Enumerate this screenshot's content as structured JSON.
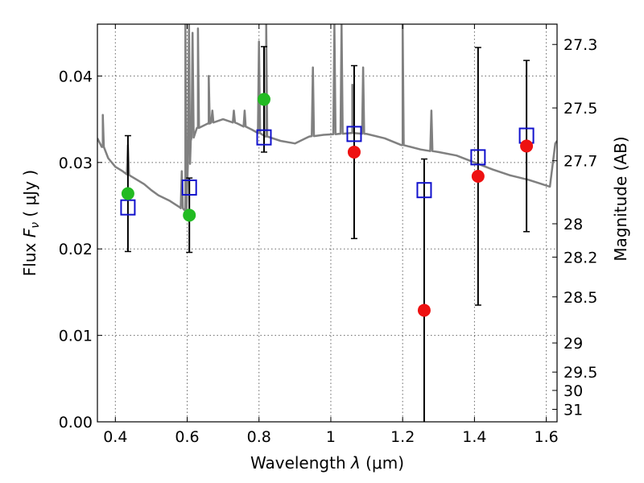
{
  "chart_data": {
    "type": "scatter",
    "title": "",
    "xlabel": "Wavelength  λ (μm)",
    "ylabel": "Flux  F_ν  ( μJy )",
    "ylabel_parts": {
      "pre": "Flux  ",
      "var": "F",
      "sub": "ν",
      "post": "  ( μJy )"
    },
    "xlabel_parts": {
      "pre": "Wavelength  ",
      "var": "λ",
      "post": " (μm)"
    },
    "right_ylabel": "Magnitude (AB)",
    "xlim": [
      0.35,
      1.63
    ],
    "ylim": [
      0.0,
      0.046
    ],
    "grid": true,
    "x_ticks": [
      {
        "v": 0.4,
        "label": "0.4"
      },
      {
        "v": 0.6,
        "label": "0.6"
      },
      {
        "v": 0.8,
        "label": "0.8"
      },
      {
        "v": 1.0,
        "label": "1"
      },
      {
        "v": 1.2,
        "label": "1.2"
      },
      {
        "v": 1.4,
        "label": "1.4"
      },
      {
        "v": 1.6,
        "label": "1.6"
      }
    ],
    "y_ticks": [
      {
        "v": 0.0,
        "label": "0.00"
      },
      {
        "v": 0.01,
        "label": "0.01"
      },
      {
        "v": 0.02,
        "label": "0.02"
      },
      {
        "v": 0.03,
        "label": "0.03"
      },
      {
        "v": 0.04,
        "label": "0.04"
      }
    ],
    "right_ticks": [
      {
        "mag": 27.3,
        "label": "27.3"
      },
      {
        "mag": 27.5,
        "label": "27.5"
      },
      {
        "mag": 27.7,
        "label": "27.7"
      },
      {
        "mag": 28.0,
        "label": "28"
      },
      {
        "mag": 28.2,
        "label": "28.2"
      },
      {
        "mag": 28.5,
        "label": "28.5"
      },
      {
        "mag": 29.0,
        "label": "29"
      },
      {
        "mag": 29.5,
        "label": "29.5"
      },
      {
        "mag": 30.0,
        "label": "30"
      },
      {
        "mag": 31.0,
        "label": "31"
      }
    ],
    "colors": {
      "green": "#22bb22",
      "red": "#ee1111",
      "model_box": "#1111cc",
      "spectrum": "#808080",
      "errorbar": "#000000",
      "grid": "#666666"
    },
    "observed": [
      {
        "x": 0.435,
        "y": 0.0264,
        "err": 0.0067,
        "color": "green"
      },
      {
        "x": 0.606,
        "y": 0.0239,
        "err": 0.0043,
        "color": "green"
      },
      {
        "x": 0.814,
        "y": 0.0373,
        "err": 0.0061,
        "color": "green"
      },
      {
        "x": 1.065,
        "y": 0.0312,
        "err": 0.01,
        "color": "red"
      },
      {
        "x": 1.26,
        "y": 0.0129,
        "err": 0.0175,
        "color": "red"
      },
      {
        "x": 1.41,
        "y": 0.0284,
        "err": 0.0149,
        "color": "red"
      },
      {
        "x": 1.545,
        "y": 0.0319,
        "err": 0.0099,
        "color": "red"
      }
    ],
    "model_points": [
      {
        "x": 0.435,
        "y": 0.0248
      },
      {
        "x": 0.606,
        "y": 0.0271
      },
      {
        "x": 0.814,
        "y": 0.0329
      },
      {
        "x": 1.065,
        "y": 0.0333
      },
      {
        "x": 1.26,
        "y": 0.0268
      },
      {
        "x": 1.41,
        "y": 0.0306
      },
      {
        "x": 1.545,
        "y": 0.0331
      }
    ],
    "spectrum": {
      "continuum": [
        [
          0.35,
          0.0328
        ],
        [
          0.365,
          0.0318
        ],
        [
          0.38,
          0.0305
        ],
        [
          0.4,
          0.0295
        ],
        [
          0.42,
          0.029
        ],
        [
          0.44,
          0.0285
        ],
        [
          0.46,
          0.028
        ],
        [
          0.48,
          0.0275
        ],
        [
          0.5,
          0.0268
        ],
        [
          0.52,
          0.0262
        ],
        [
          0.55,
          0.0256
        ],
        [
          0.58,
          0.0248
        ],
        [
          0.595,
          0.0245
        ],
        [
          0.61,
          0.0325
        ],
        [
          0.63,
          0.034
        ],
        [
          0.66,
          0.0345
        ],
        [
          0.7,
          0.035
        ],
        [
          0.74,
          0.0345
        ],
        [
          0.78,
          0.0338
        ],
        [
          0.82,
          0.033
        ],
        [
          0.86,
          0.0325
        ],
        [
          0.9,
          0.0322
        ],
        [
          0.94,
          0.033
        ],
        [
          0.98,
          0.0332
        ],
        [
          1.02,
          0.0333
        ],
        [
          1.06,
          0.0334
        ],
        [
          1.1,
          0.0333
        ],
        [
          1.15,
          0.0328
        ],
        [
          1.2,
          0.032
        ],
        [
          1.25,
          0.0315
        ],
        [
          1.3,
          0.0312
        ],
        [
          1.35,
          0.0308
        ],
        [
          1.4,
          0.03
        ],
        [
          1.45,
          0.0292
        ],
        [
          1.5,
          0.0285
        ],
        [
          1.55,
          0.028
        ],
        [
          1.58,
          0.0276
        ],
        [
          1.61,
          0.0272
        ],
        [
          1.625,
          0.0322
        ],
        [
          1.63,
          0.0325
        ]
      ],
      "lines": [
        {
          "x": 0.365,
          "y": 0.0355
        },
        {
          "x": 0.435,
          "y": 0.032
        },
        {
          "x": 0.585,
          "y": 0.029
        },
        {
          "x": 0.595,
          "y": 0.046
        },
        {
          "x": 0.605,
          "y": 0.046
        },
        {
          "x": 0.615,
          "y": 0.045
        },
        {
          "x": 0.63,
          "y": 0.0455
        },
        {
          "x": 0.66,
          "y": 0.04
        },
        {
          "x": 0.67,
          "y": 0.036
        },
        {
          "x": 0.73,
          "y": 0.036
        },
        {
          "x": 0.76,
          "y": 0.036
        },
        {
          "x": 0.8,
          "y": 0.044
        },
        {
          "x": 0.82,
          "y": 0.046
        },
        {
          "x": 0.95,
          "y": 0.041
        },
        {
          "x": 1.01,
          "y": 0.046
        },
        {
          "x": 1.03,
          "y": 0.046
        },
        {
          "x": 1.06,
          "y": 0.039
        },
        {
          "x": 1.09,
          "y": 0.041
        },
        {
          "x": 1.2,
          "y": 0.046
        },
        {
          "x": 1.28,
          "y": 0.036
        }
      ]
    }
  }
}
